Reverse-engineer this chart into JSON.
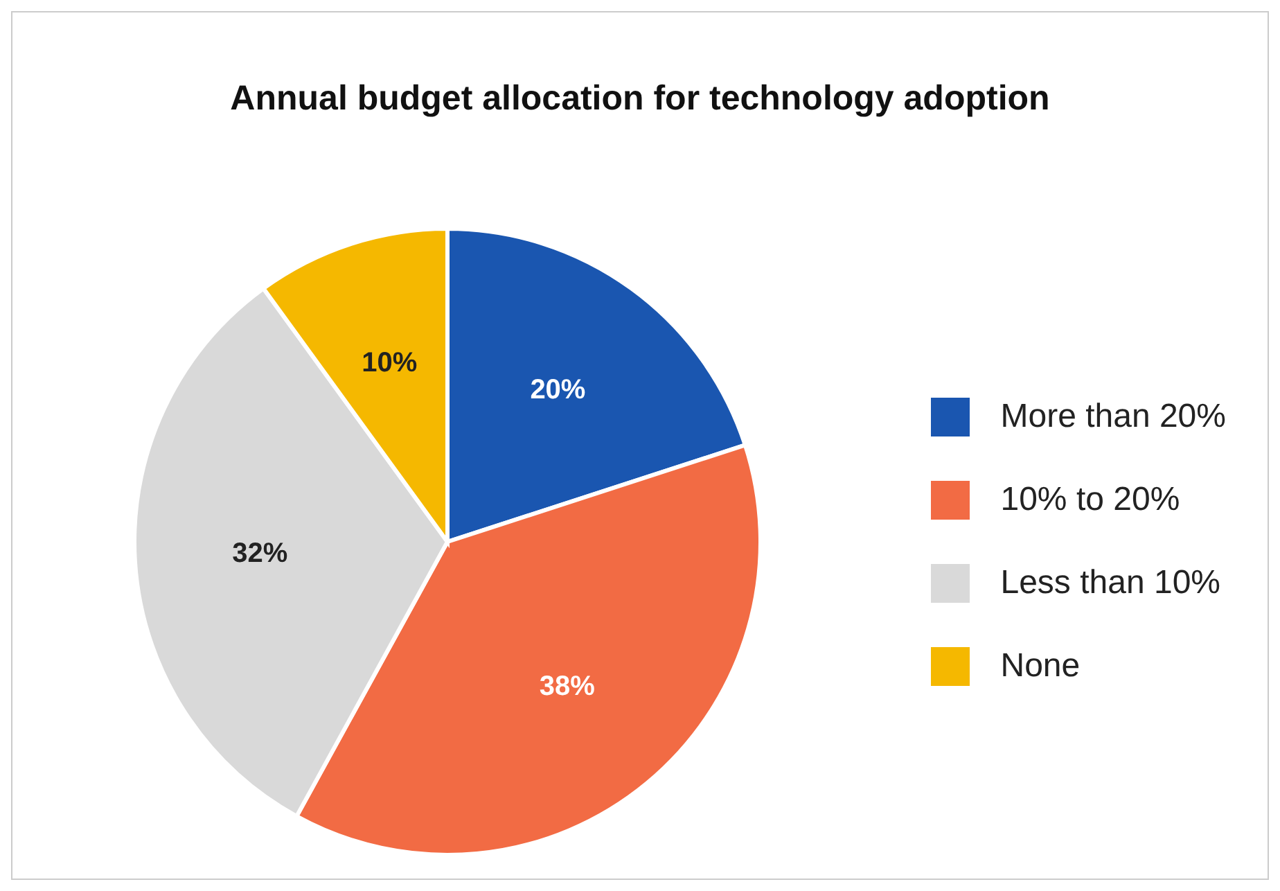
{
  "chart_data": {
    "type": "pie",
    "title": "Annual budget allocation for technology adoption",
    "categories": [
      "More than 20%",
      "10% to 20%",
      "Less than 10%",
      "None"
    ],
    "values": [
      20,
      38,
      32,
      10
    ],
    "colors": [
      "#1a56b0",
      "#f26b44",
      "#d9d9d9",
      "#f5b800"
    ],
    "value_labels": [
      "20%",
      "38%",
      "32%",
      "10%"
    ],
    "legend": "right"
  }
}
